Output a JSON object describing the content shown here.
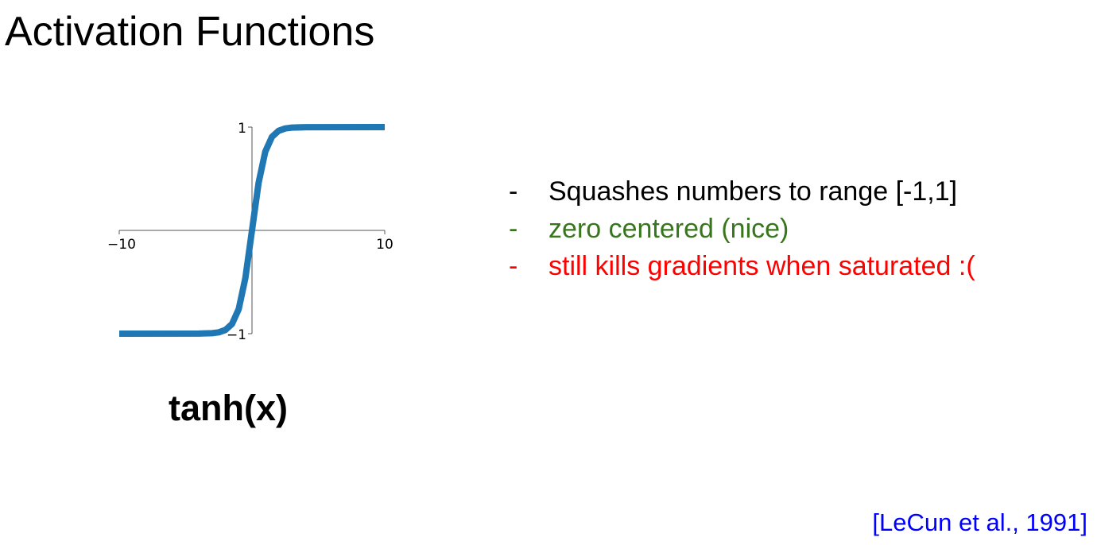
{
  "slide": {
    "title": "Activation Functions",
    "function_label": "tanh(x)",
    "citation": "[LeCun et al., 1991]"
  },
  "bullets": [
    {
      "dash": "-",
      "text": "Squashes numbers to range [-1,1]",
      "color": "#000000"
    },
    {
      "dash": "-",
      "text": "zero centered (nice)",
      "color": "#38761d"
    },
    {
      "dash": "-",
      "text": "still kills gradients when saturated :(",
      "color": "#ff0000"
    }
  ],
  "colors": {
    "curve": "#1f77b4",
    "citation": "#0000ff"
  },
  "chart_data": {
    "type": "line",
    "function": "tanh",
    "xlim": [
      -10,
      10
    ],
    "ylim": [
      -1,
      1
    ],
    "x_tick_labels": [
      "−10",
      "10"
    ],
    "y_tick_labels": [
      "1",
      "−1"
    ],
    "series": [
      {
        "x": [
          -10,
          -4,
          -3,
          -2.5,
          -2,
          -1.5,
          -1,
          -0.5,
          0,
          0.5,
          1,
          1.5,
          2,
          2.5,
          3,
          4,
          10
        ],
        "y": [
          -1,
          -0.999,
          -0.995,
          -0.987,
          -0.964,
          -0.905,
          -0.762,
          -0.462,
          0,
          0.462,
          0.762,
          0.905,
          0.964,
          0.987,
          0.995,
          0.999,
          1
        ]
      }
    ]
  }
}
